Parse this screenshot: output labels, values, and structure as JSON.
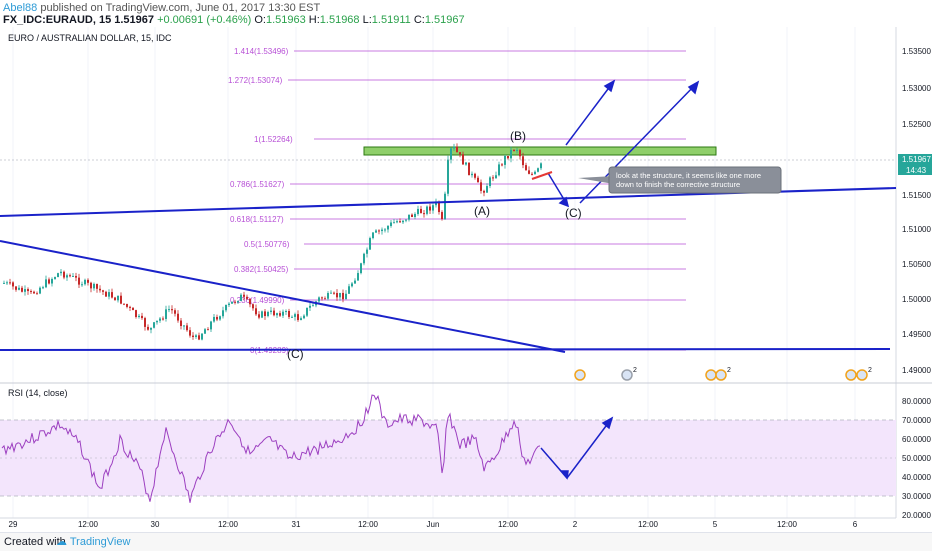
{
  "header": {
    "user": "Abel88",
    "published": "published on TradingView.com, June 01, 2017 13:30 EST",
    "symbol": "FX_IDC:EURAUD, 15",
    "price_now": "1.51967",
    "change": "+0.00691 (+0.46%)",
    "o_label": "O:",
    "o_value": "1.51963",
    "h_label": "H:",
    "h_value": "1.51968",
    "l_label": "L:",
    "l_value": "1.51911",
    "c_label": "C:",
    "c_value": "1.51967"
  },
  "chart": {
    "title": "EURO / AUSTRALIAN DOLLAR, 15, IDC",
    "price_axis": [
      "1.53500",
      "1.53000",
      "1.52500",
      "1.52000",
      "1.51500",
      "1.51000",
      "1.50500",
      "1.50000",
      "1.49500",
      "1.49000"
    ],
    "current_price": "1.51967",
    "countdown": "14:43",
    "time_axis": [
      "29",
      "12:00",
      "30",
      "12:00",
      "31",
      "12:00",
      "Jun",
      "12:00",
      "2",
      "12:00",
      "5",
      "12:00",
      "6"
    ],
    "fib_levels": [
      "1.414(1.53496)",
      "1.272(1.53074)",
      "1(1.52264)",
      "0.786(1.51627)",
      "0.618(1.51127)",
      "0.5(1.50776)",
      "0.382(1.50425)",
      "0.236(1.49990)",
      "0(1.49289)"
    ],
    "wave_labels": {
      "b": "(B)",
      "a": "(A)",
      "c_projection": "(C)",
      "c_low": "(C)"
    },
    "annotation": "look at the structure, it seems like one more down to finish the corrective structure",
    "event_badges": [
      "2",
      "2",
      "2"
    ],
    "colors": {
      "fib": "#b74fd6",
      "trend": "#1a22c9",
      "zone_fill": "#8fcf6a",
      "zone_stroke": "#2c7a12",
      "bull": "#26a69a",
      "bear": "#c62828",
      "rsi_line": "#9c3fc0",
      "rsi_band": "#f3e5fc"
    }
  },
  "rsi": {
    "title": "RSI (14, close)",
    "axis": [
      "80.0000",
      "70.0000",
      "60.0000",
      "50.0000",
      "40.0000",
      "30.0000",
      "20.0000"
    ]
  },
  "footer": {
    "created": "Created with",
    "brand": "TradingView"
  }
}
